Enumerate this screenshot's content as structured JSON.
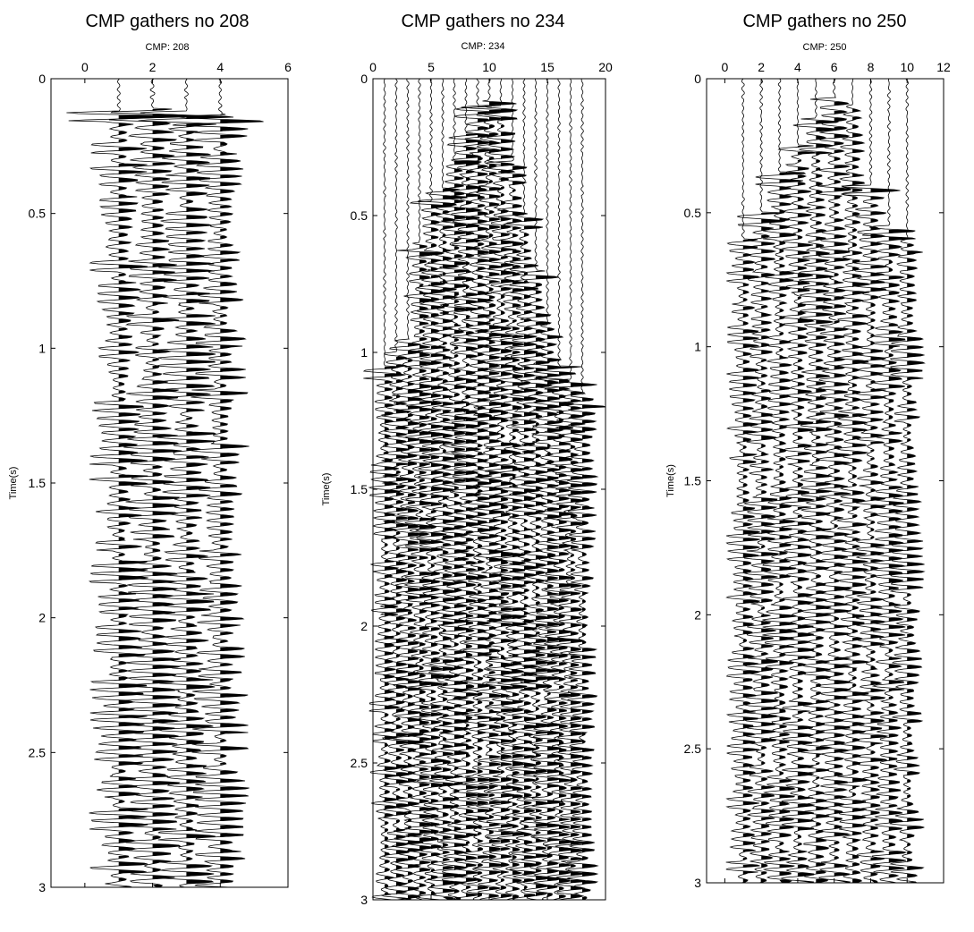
{
  "chart_data": [
    {
      "type": "seismic wiggle trace",
      "title": "CMP gathers no 208",
      "subtitle": "CMP: 208",
      "xlabel": "",
      "ylabel": "Time(s)",
      "xlim": [
        -1,
        6
      ],
      "ylim": [
        0,
        3
      ],
      "x_ticks": [
        0,
        2,
        4,
        6
      ],
      "y_ticks": [
        0,
        0.5,
        1,
        1.5,
        2,
        2.5,
        3
      ],
      "y_inverted": true,
      "x_axis_position": "top",
      "trace_offsets": [
        1,
        2,
        3,
        4
      ],
      "mute_times": [
        0.12,
        0.11,
        0.12,
        0.13
      ],
      "amplitude_scale": 0.55,
      "seed": 208
    },
    {
      "type": "seismic wiggle trace",
      "title": "CMP gathers no 234",
      "subtitle": "CMP: 234",
      "xlabel": "",
      "ylabel": "Time(s)",
      "xlim": [
        0,
        20
      ],
      "ylim": [
        0,
        3
      ],
      "x_ticks": [
        0,
        5,
        10,
        15,
        20
      ],
      "y_ticks": [
        0,
        0.5,
        1,
        1.5,
        2,
        2.5,
        3
      ],
      "y_inverted": true,
      "x_axis_position": "top",
      "trace_offsets": [
        1,
        2,
        3,
        4,
        5,
        6,
        7,
        8,
        9,
        10,
        11,
        12,
        13,
        14,
        15,
        16,
        17,
        18
      ],
      "mute_times": [
        1.05,
        1.0,
        0.95,
        0.6,
        0.45,
        0.4,
        0.3,
        0.2,
        0.1,
        0.08,
        0.1,
        0.3,
        0.5,
        0.7,
        0.9,
        1.05,
        1.1,
        1.15
      ],
      "amplitude_scale": 0.85,
      "seed": 234
    },
    {
      "type": "seismic wiggle trace",
      "title": "CMP gathers no 250",
      "subtitle": "CMP: 250",
      "xlabel": "",
      "ylabel": "Time(s)",
      "xlim": [
        -1,
        12
      ],
      "ylim": [
        0,
        3
      ],
      "x_ticks": [
        0,
        2,
        4,
        6,
        8,
        10,
        12
      ],
      "y_ticks": [
        0,
        0.5,
        1,
        1.5,
        2,
        2.5,
        3
      ],
      "y_inverted": true,
      "x_axis_position": "top",
      "trace_offsets": [
        1,
        2,
        3,
        4,
        5,
        6,
        7,
        8,
        9,
        10
      ],
      "mute_times": [
        0.6,
        0.5,
        0.35,
        0.25,
        0.15,
        0.07,
        0.1,
        0.4,
        0.55,
        0.6
      ],
      "amplitude_scale": 0.6,
      "seed": 250
    }
  ]
}
